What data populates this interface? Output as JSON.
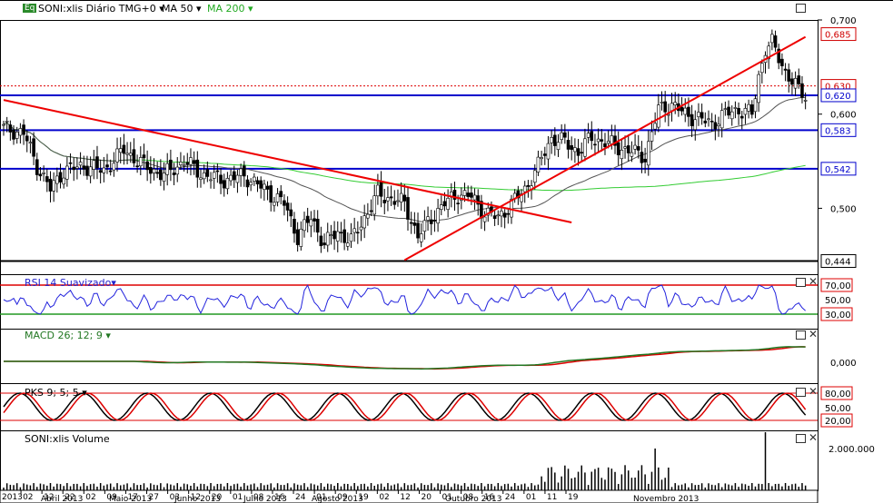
{
  "main": {
    "symbol_badge": "Eq",
    "title": "SONI:xlis Diário TMG+0",
    "ma50": "MA 50",
    "ma200": "MA 200",
    "y_ticks": [
      "0,700",
      "0,600",
      "0,500"
    ],
    "price_flags": [
      {
        "text": "0,685",
        "color": "#d00000"
      },
      {
        "text": "0,630",
        "color": "#d00000"
      },
      {
        "text": "0,620",
        "color": "#0000cc"
      },
      {
        "text": "0,583",
        "color": "#0000cc"
      },
      {
        "text": "0,542",
        "color": "#0000cc"
      },
      {
        "text": "0,444",
        "color": "#000000"
      }
    ]
  },
  "rsi": {
    "title": "RSI 14 Suavizado",
    "labels": [
      "70,00",
      "50,00",
      "30,00"
    ]
  },
  "macd": {
    "title": "MACD 26; 12; 9",
    "labels": [
      "0,000"
    ]
  },
  "stoch": {
    "title": "PKS 9; 5; 5",
    "labels": [
      "80,00",
      "50,00",
      "20,00"
    ]
  },
  "volume": {
    "title": "SONI:xlis Volume",
    "labels": [
      "2.000.000"
    ]
  },
  "x_axis": {
    "days": [
      "2013",
      "02",
      "12",
      "22",
      "02",
      "09",
      "17",
      "27",
      "03",
      "12",
      "20",
      "01",
      "08",
      "16",
      "24",
      "01",
      "09",
      "19",
      "02",
      "12",
      "20",
      "01",
      "08",
      "16",
      "24",
      "01",
      "11",
      "19"
    ],
    "months": [
      "Abril 2013",
      "Maio 2013",
      "Junho 2013",
      "Julho 2013",
      "Agosto 2013",
      "Outubro 2013",
      "Novembro 2013"
    ]
  },
  "colors": {
    "up": "#ffffff",
    "down": "#000000",
    "ma50": "#555555",
    "ma200": "#33cc33",
    "trend": "#ee0000",
    "level": "#0000cc",
    "rsi": "#2222dd"
  },
  "chart_data": {
    "type": "candlestick",
    "title": "SONI:xlis Diário TMG+0",
    "ylim": [
      0.43,
      0.7
    ],
    "horizontal_levels": [
      {
        "value": 0.63,
        "style": "dotted",
        "color": "red"
      },
      {
        "value": 0.62,
        "color": "blue"
      },
      {
        "value": 0.583,
        "color": "blue"
      },
      {
        "value": 0.542,
        "color": "blue"
      },
      {
        "value": 0.444,
        "color": "black"
      }
    ],
    "trendlines": [
      {
        "from": [
          0,
          0.615
        ],
        "to": [
          170,
          0.485
        ]
      },
      {
        "from": [
          120,
          0.445
        ],
        "to": [
          240,
          0.682
        ]
      }
    ],
    "close_keypoints": [
      [
        0,
        0.585
      ],
      [
        6,
        0.58
      ],
      [
        10,
        0.545
      ],
      [
        14,
        0.52
      ],
      [
        18,
        0.54
      ],
      [
        24,
        0.545
      ],
      [
        30,
        0.54
      ],
      [
        36,
        0.562
      ],
      [
        42,
        0.545
      ],
      [
        48,
        0.535
      ],
      [
        54,
        0.55
      ],
      [
        60,
        0.535
      ],
      [
        66,
        0.53
      ],
      [
        72,
        0.535
      ],
      [
        78,
        0.52
      ],
      [
        84,
        0.505
      ],
      [
        88,
        0.47
      ],
      [
        92,
        0.49
      ],
      [
        96,
        0.462
      ],
      [
        100,
        0.475
      ],
      [
        104,
        0.465
      ],
      [
        108,
        0.49
      ],
      [
        112,
        0.515
      ],
      [
        116,
        0.51
      ],
      [
        120,
        0.505
      ],
      [
        124,
        0.47
      ],
      [
        128,
        0.49
      ],
      [
        132,
        0.505
      ],
      [
        136,
        0.515
      ],
      [
        140,
        0.512
      ],
      [
        144,
        0.495
      ],
      [
        148,
        0.49
      ],
      [
        152,
        0.505
      ],
      [
        156,
        0.52
      ],
      [
        160,
        0.545
      ],
      [
        164,
        0.575
      ],
      [
        168,
        0.57
      ],
      [
        172,
        0.56
      ],
      [
        176,
        0.575
      ],
      [
        180,
        0.57
      ],
      [
        184,
        0.565
      ],
      [
        188,
        0.56
      ],
      [
        192,
        0.555
      ],
      [
        196,
        0.605
      ],
      [
        200,
        0.61
      ],
      [
        204,
        0.6
      ],
      [
        208,
        0.595
      ],
      [
        212,
        0.59
      ],
      [
        216,
        0.6
      ],
      [
        220,
        0.605
      ],
      [
        224,
        0.6
      ],
      [
        226,
        0.64
      ],
      [
        228,
        0.67
      ],
      [
        230,
        0.675
      ],
      [
        232,
        0.66
      ],
      [
        234,
        0.645
      ],
      [
        236,
        0.635
      ],
      [
        238,
        0.625
      ],
      [
        240,
        0.62
      ]
    ],
    "volume_ylabel": "2.000.000",
    "rsi_levels": [
      70,
      50,
      30
    ],
    "stoch_levels": [
      80,
      50,
      20
    ]
  }
}
